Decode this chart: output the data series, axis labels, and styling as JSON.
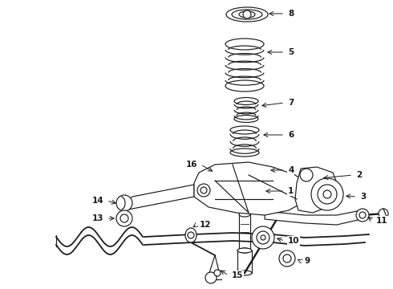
{
  "background_color": "#ffffff",
  "line_color": "#1a1a1a",
  "fig_width": 4.9,
  "fig_height": 3.6,
  "dpi": 100,
  "label_fontsize": 7.5,
  "lw": 0.85
}
